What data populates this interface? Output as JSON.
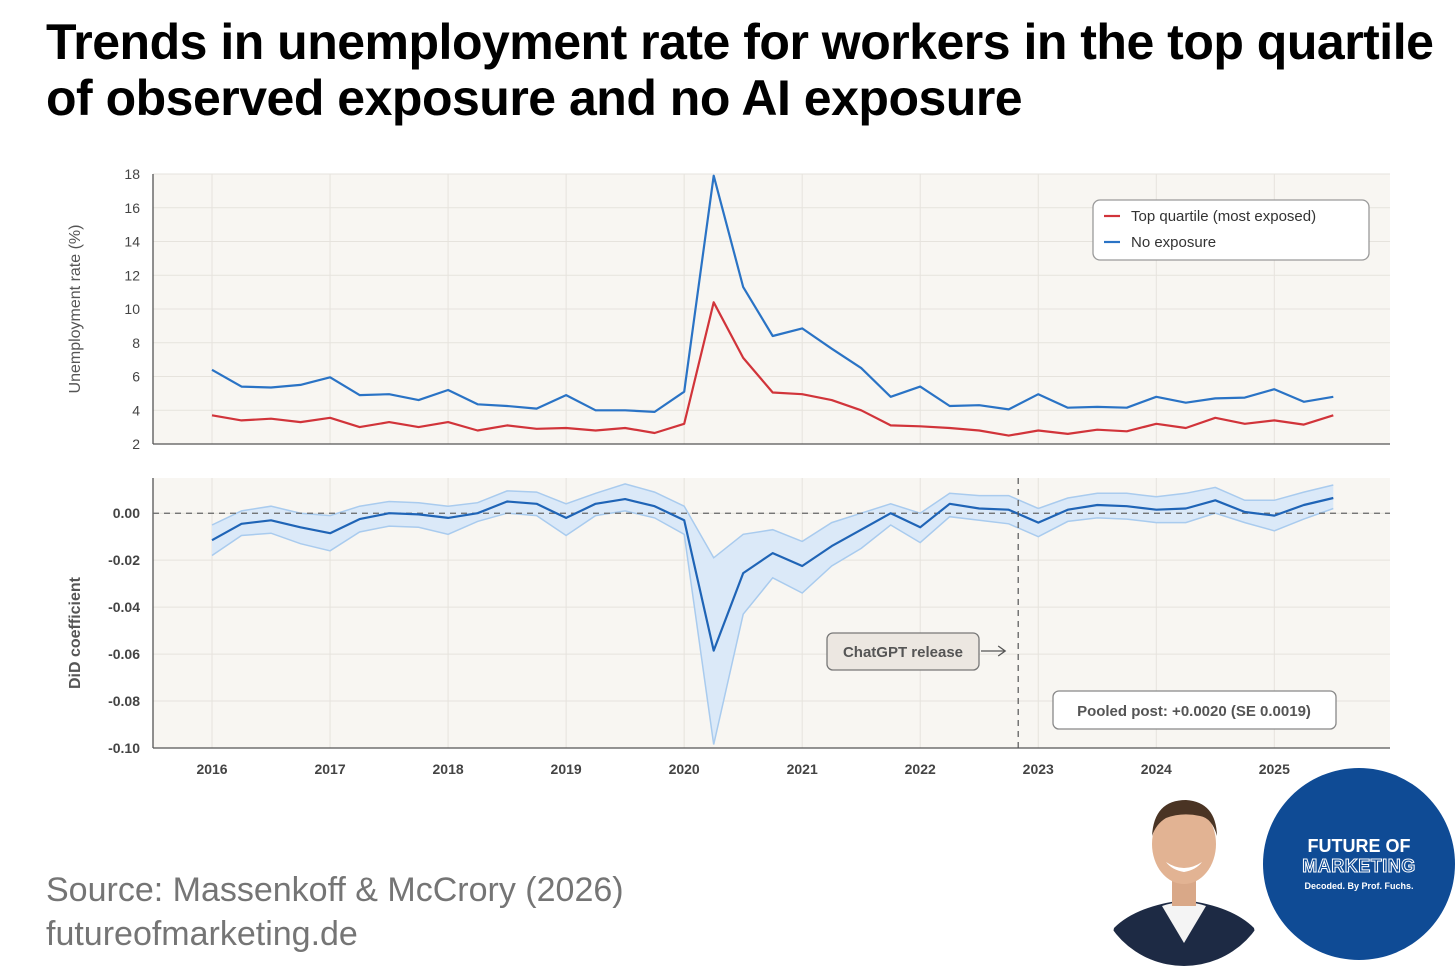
{
  "title": "Trends in unemployment rate for workers in the top quartile of observed exposure and no AI exposure",
  "source_line": "Source: Massenkoff & McCrory (2026)",
  "website_line": "futureofmarketing.de",
  "badge": {
    "line1": "FUTURE OF",
    "line2": "MARKETING",
    "line3": "Decoded. By Prof. Fuchs.",
    "color": "#0f4b95"
  },
  "colors": {
    "top_quartile": "#d1343a",
    "no_exposure": "#2a73c5",
    "did_line": "#1f64b6",
    "did_band": "#dbe9f8",
    "plot_bg": "#f8f6f2",
    "grid": "#e6e3dd"
  },
  "chart_data": [
    {
      "type": "line",
      "ylabel": "Unemployment rate (%)",
      "ylim": [
        2,
        18
      ],
      "yticks": [
        2,
        4,
        6,
        8,
        10,
        12,
        14,
        16,
        18
      ],
      "xlim": [
        2015.5,
        2025.98
      ],
      "xticks": [
        "2016",
        "2017",
        "2018",
        "2019",
        "2020",
        "2021",
        "2022",
        "2023",
        "2024",
        "2025"
      ],
      "grid": true,
      "legend_position": "top-right",
      "series": [
        {
          "name": "Top quartile (most exposed)",
          "color": "#d1343a",
          "points": [
            [
              2016.0,
              3.7
            ],
            [
              2016.25,
              3.4
            ],
            [
              2016.5,
              3.5
            ],
            [
              2016.75,
              3.3
            ],
            [
              2017.0,
              3.55
            ],
            [
              2017.25,
              3.0
            ],
            [
              2017.5,
              3.3
            ],
            [
              2017.75,
              3.0
            ],
            [
              2018.0,
              3.3
            ],
            [
              2018.25,
              2.8
            ],
            [
              2018.5,
              3.1
            ],
            [
              2018.75,
              2.9
            ],
            [
              2019.0,
              2.95
            ],
            [
              2019.25,
              2.8
            ],
            [
              2019.5,
              2.95
            ],
            [
              2019.75,
              2.65
            ],
            [
              2020.0,
              3.2
            ],
            [
              2020.25,
              10.4
            ],
            [
              2020.5,
              7.1
            ],
            [
              2020.75,
              5.05
            ],
            [
              2021.0,
              4.95
            ],
            [
              2021.25,
              4.6
            ],
            [
              2021.5,
              4.0
            ],
            [
              2021.75,
              3.1
            ],
            [
              2022.0,
              3.05
            ],
            [
              2022.25,
              2.95
            ],
            [
              2022.5,
              2.8
            ],
            [
              2022.75,
              2.5
            ],
            [
              2023.0,
              2.8
            ],
            [
              2023.25,
              2.6
            ],
            [
              2023.5,
              2.85
            ],
            [
              2023.75,
              2.75
            ],
            [
              2024.0,
              3.2
            ],
            [
              2024.25,
              2.95
            ],
            [
              2024.5,
              3.55
            ],
            [
              2024.75,
              3.2
            ],
            [
              2025.0,
              3.4
            ],
            [
              2025.25,
              3.15
            ],
            [
              2025.5,
              3.7
            ]
          ]
        },
        {
          "name": "No exposure",
          "color": "#2a73c5",
          "points": [
            [
              2016.0,
              6.4
            ],
            [
              2016.25,
              5.4
            ],
            [
              2016.5,
              5.35
            ],
            [
              2016.75,
              5.5
            ],
            [
              2017.0,
              5.95
            ],
            [
              2017.25,
              4.9
            ],
            [
              2017.5,
              4.95
            ],
            [
              2017.75,
              4.6
            ],
            [
              2018.0,
              5.2
            ],
            [
              2018.25,
              4.35
            ],
            [
              2018.5,
              4.25
            ],
            [
              2018.75,
              4.1
            ],
            [
              2019.0,
              4.9
            ],
            [
              2019.25,
              4.0
            ],
            [
              2019.5,
              4.0
            ],
            [
              2019.75,
              3.9
            ],
            [
              2020.0,
              5.1
            ],
            [
              2020.25,
              17.9
            ],
            [
              2020.5,
              11.3
            ],
            [
              2020.75,
              8.4
            ],
            [
              2021.0,
              8.85
            ],
            [
              2021.25,
              7.65
            ],
            [
              2021.5,
              6.5
            ],
            [
              2021.75,
              4.8
            ],
            [
              2022.0,
              5.4
            ],
            [
              2022.25,
              4.25
            ],
            [
              2022.5,
              4.3
            ],
            [
              2022.75,
              4.05
            ],
            [
              2023.0,
              4.95
            ],
            [
              2023.25,
              4.15
            ],
            [
              2023.5,
              4.2
            ],
            [
              2023.75,
              4.15
            ],
            [
              2024.0,
              4.8
            ],
            [
              2024.25,
              4.45
            ],
            [
              2024.5,
              4.7
            ],
            [
              2024.75,
              4.75
            ],
            [
              2025.0,
              5.25
            ],
            [
              2025.25,
              4.5
            ],
            [
              2025.5,
              4.8
            ]
          ]
        }
      ]
    },
    {
      "type": "line",
      "ylabel": "DiD coefficient",
      "ylim": [
        -0.1,
        0.015
      ],
      "yticks": [
        -0.1,
        -0.08,
        -0.06,
        -0.04,
        -0.02,
        0.0
      ],
      "ytick_labels": [
        "-0.10",
        "-0.08",
        "-0.06",
        "-0.04",
        "-0.02",
        "0.00"
      ],
      "xlim": [
        2015.5,
        2025.98
      ],
      "grid": true,
      "reference_line_y": 0,
      "vertical_marker_x": 2022.83,
      "annotation": "ChatGPT release",
      "pooled_box": "Pooled post: +0.0020 (SE 0.0019)",
      "series": [
        {
          "name": "DiD coefficient",
          "points": [
            [
              2016.0,
              -0.0115,
              -0.018,
              -0.005
            ],
            [
              2016.25,
              -0.0045,
              -0.0095,
              0.001
            ],
            [
              2016.5,
              -0.003,
              -0.0085,
              0.003
            ],
            [
              2016.75,
              -0.006,
              -0.013,
              0.0
            ],
            [
              2017.0,
              -0.0085,
              -0.016,
              -0.001
            ],
            [
              2017.25,
              -0.0025,
              -0.008,
              0.003
            ],
            [
              2017.5,
              0.0,
              -0.0055,
              0.005
            ],
            [
              2017.75,
              -0.0005,
              -0.006,
              0.0045
            ],
            [
              2018.0,
              -0.002,
              -0.009,
              0.003
            ],
            [
              2018.25,
              0.0,
              -0.0035,
              0.0045
            ],
            [
              2018.5,
              0.005,
              0.0,
              0.0095
            ],
            [
              2018.75,
              0.004,
              -0.001,
              0.009
            ],
            [
              2019.0,
              -0.002,
              -0.0095,
              0.004
            ],
            [
              2019.25,
              0.004,
              -0.001,
              0.0085
            ],
            [
              2019.5,
              0.006,
              0.001,
              0.0125
            ],
            [
              2019.75,
              0.003,
              -0.002,
              0.009
            ],
            [
              2020.0,
              -0.003,
              -0.009,
              0.003
            ],
            [
              2020.25,
              -0.0585,
              -0.0985,
              -0.019
            ],
            [
              2020.5,
              -0.0255,
              -0.043,
              -0.009
            ],
            [
              2020.75,
              -0.017,
              -0.0275,
              -0.007
            ],
            [
              2021.0,
              -0.0225,
              -0.034,
              -0.012
            ],
            [
              2021.25,
              -0.014,
              -0.0225,
              -0.004
            ],
            [
              2021.5,
              -0.007,
              -0.015,
              0.0
            ],
            [
              2021.75,
              0.0,
              -0.005,
              0.004
            ],
            [
              2022.0,
              -0.006,
              -0.0125,
              0.0
            ],
            [
              2022.25,
              0.004,
              -0.0015,
              0.0085
            ],
            [
              2022.5,
              0.002,
              -0.003,
              0.0075
            ],
            [
              2022.75,
              0.0015,
              -0.0045,
              0.0075
            ],
            [
              2023.0,
              -0.004,
              -0.01,
              0.002
            ],
            [
              2023.25,
              0.0015,
              -0.0035,
              0.0065
            ],
            [
              2023.5,
              0.0035,
              -0.002,
              0.0085
            ],
            [
              2023.75,
              0.003,
              -0.0025,
              0.0085
            ],
            [
              2024.0,
              0.0015,
              -0.004,
              0.007
            ],
            [
              2024.25,
              0.002,
              -0.004,
              0.0085
            ],
            [
              2024.5,
              0.0055,
              0.0,
              0.011
            ],
            [
              2024.75,
              0.0005,
              -0.004,
              0.0055
            ],
            [
              2025.0,
              -0.001,
              -0.0075,
              0.0055
            ],
            [
              2025.25,
              0.0035,
              -0.0025,
              0.009
            ],
            [
              2025.5,
              0.0065,
              0.002,
              0.012
            ]
          ]
        }
      ]
    }
  ]
}
